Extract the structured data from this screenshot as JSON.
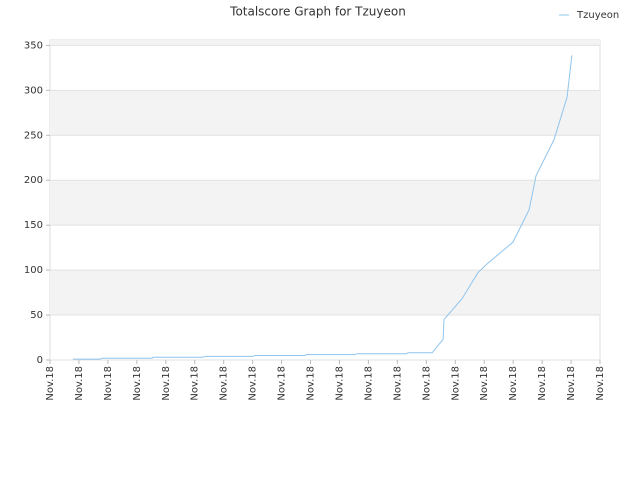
{
  "chart_data": {
    "type": "line",
    "title": "Totalscore Graph for Tzuyeon",
    "x": [
      0.79,
      1.73,
      1.8,
      3.52,
      3.56,
      5.28,
      5.35,
      7.01,
      7.08,
      8.81,
      8.84,
      10.54,
      10.6,
      12.3,
      12.37,
      13.2,
      13.58,
      13.61,
      14.23,
      14.78,
      15.1,
      15.99,
      16.55,
      16.79,
      17.41,
      17.86,
      18.03
    ],
    "series": [
      {
        "name": "Tzuyeon",
        "color": "#90c4ec",
        "values": [
          1,
          1,
          2,
          2,
          3,
          3,
          4,
          4,
          5,
          5,
          6,
          6,
          7,
          7,
          8,
          8,
          23,
          45,
          68,
          97,
          107,
          131,
          167,
          205,
          245,
          292,
          339
        ]
      }
    ],
    "xlim": [
      0,
      19
    ],
    "xticks": [
      {
        "value": 0,
        "label": "Nov.18"
      },
      {
        "value": 1,
        "label": "Nov.18"
      },
      {
        "value": 2,
        "label": "Nov.18"
      },
      {
        "value": 3,
        "label": "Nov.18"
      },
      {
        "value": 4,
        "label": "Nov.18"
      },
      {
        "value": 5,
        "label": "Nov.18"
      },
      {
        "value": 6,
        "label": "Nov.18"
      },
      {
        "value": 7,
        "label": "Nov.18"
      },
      {
        "value": 8,
        "label": "Nov.18"
      },
      {
        "value": 9,
        "label": "Nov.18"
      },
      {
        "value": 10,
        "label": "Nov.18"
      },
      {
        "value": 11,
        "label": "Nov.18"
      },
      {
        "value": 12,
        "label": "Nov.18"
      },
      {
        "value": 13,
        "label": "Nov.18"
      },
      {
        "value": 14,
        "label": "Nov.18"
      },
      {
        "value": 15,
        "label": "Nov.18"
      },
      {
        "value": 16,
        "label": "Nov.18"
      },
      {
        "value": 17,
        "label": "Nov.18"
      },
      {
        "value": 18,
        "label": "Nov.18"
      },
      {
        "value": 19,
        "label": "Nov.18"
      }
    ],
    "ylim": [
      0,
      356
    ],
    "yticks": [
      0,
      50,
      100,
      150,
      200,
      250,
      300,
      350
    ],
    "grid": true,
    "legend": "top-right"
  }
}
